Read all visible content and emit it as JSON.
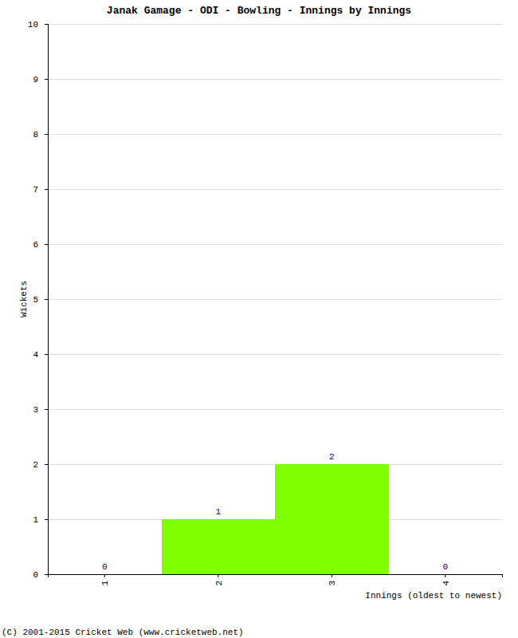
{
  "chart_data": {
    "type": "bar",
    "title": "Janak Gamage - ODI - Bowling - Innings by Innings",
    "x_label": "Innings (oldest to newest)",
    "y_label": "Wickets",
    "annotations": [
      "(C) 2001-2015 Cricket Web (www.cricketweb.net)"
    ],
    "categories": [
      "1",
      "2",
      "3",
      "4"
    ],
    "values": [
      0,
      1,
      2,
      0
    ],
    "color": "#80ff00",
    "ylim": [
      0,
      10
    ],
    "yticks": [
      0,
      1,
      2,
      3,
      4,
      5,
      6,
      7,
      8,
      9,
      10
    ],
    "grid": true,
    "data_labels": true
  }
}
